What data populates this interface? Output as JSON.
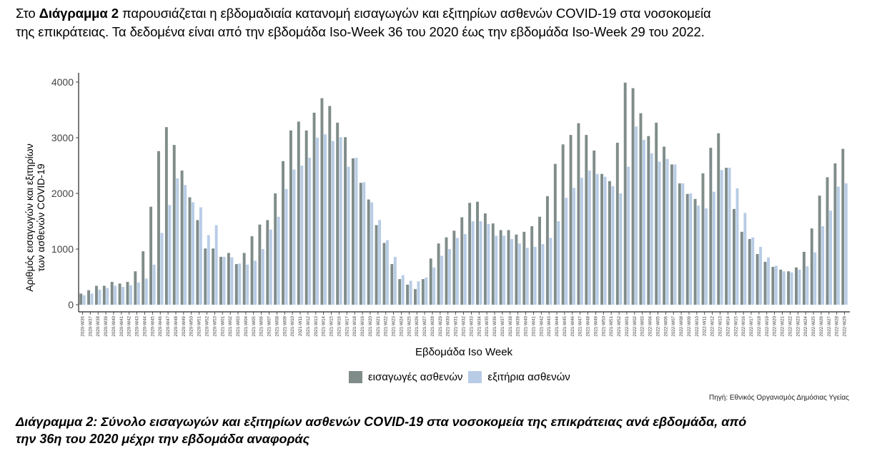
{
  "intro": {
    "prefix": "Στο ",
    "bold": "Διάγραμμα 2",
    "line1_rest": " παρουσιάζεται η εβδομαδιαία κατανομή εισαγωγών και εξιτηρίων ασθενών COVID-19 στα νοσοκομεία",
    "line2": "της επικράτειας.  Τα δεδομένα είναι από την εβδομάδα Iso-Week 36 του 2020 έως την εβδομάδα Iso-Week 29 του 2022."
  },
  "chart_data": {
    "type": "bar",
    "xlabel": "Εβδομάδα Iso Week",
    "ylabel_line1": "Αριθμός εισαγωγών και εξιτηρίων",
    "ylabel_line2": "των ασθενών COVID-19",
    "ylim": [
      0,
      4150
    ],
    "yticks": [
      0,
      1000,
      2000,
      3000,
      4000
    ],
    "grid": false,
    "legend_position": "bottom",
    "categories": [
      "2020-W36",
      "2020-W37",
      "2020-W38",
      "2020-W39",
      "2020-W40",
      "2020-W41",
      "2020-W42",
      "2020-W43",
      "2020-W44",
      "2020-W45",
      "2020-W46",
      "2020-W47",
      "2020-W48",
      "2020-W49",
      "2020-W50",
      "2020-W51",
      "2020-W52",
      "2020-W53",
      "2021-W01",
      "2021-W02",
      "2021-W03",
      "2021-W04",
      "2021-W05",
      "2021-W06",
      "2021-W07",
      "2021-W08",
      "2021-W09",
      "2021-W10",
      "2021-W11",
      "2021-W12",
      "2021-W13",
      "2021-W14",
      "2021-W15",
      "2021-W16",
      "2021-W17",
      "2021-W18",
      "2021-W19",
      "2021-W20",
      "2021-W21",
      "2021-W22",
      "2021-W23",
      "2021-W24",
      "2021-W25",
      "2021-W26",
      "2021-W27",
      "2021-W28",
      "2021-W29",
      "2021-W30",
      "2021-W31",
      "2021-W32",
      "2021-W33",
      "2021-W34",
      "2021-W35",
      "2021-W36",
      "2021-W37",
      "2021-W38",
      "2021-W39",
      "2021-W40",
      "2021-W41",
      "2021-W42",
      "2021-W43",
      "2021-W44",
      "2021-W45",
      "2021-W46",
      "2021-W47",
      "2021-W48",
      "2021-W49",
      "2021-W50",
      "2021-W51",
      "2021-W52",
      "2022-W01",
      "2022-W02",
      "2022-W03",
      "2022-W04",
      "2022-W05",
      "2022-W06",
      "2022-W07",
      "2022-W08",
      "2022-W09",
      "2022-W10",
      "2022-W11",
      "2022-W12",
      "2022-W13",
      "2022-W14",
      "2022-W15",
      "2022-W16",
      "2022-W17",
      "2022-W18",
      "2022-W19",
      "2022-W20",
      "2022-W21",
      "2022-W22",
      "2022-W23",
      "2022-W24",
      "2022-W25",
      "2022-W26",
      "2022-W27",
      "2022-W28",
      "2022-W29"
    ],
    "series": [
      {
        "name": "εισαγωγές ασθενών",
        "color": "#7f8c8a",
        "values": [
          200,
          260,
          340,
          340,
          410,
          380,
          410,
          600,
          960,
          1760,
          2760,
          3190,
          2870,
          2410,
          1930,
          1520,
          1010,
          1010,
          860,
          930,
          730,
          930,
          1230,
          1440,
          1520,
          2000,
          2580,
          3130,
          3290,
          3130,
          3450,
          3710,
          3570,
          3270,
          3010,
          2630,
          2190,
          1890,
          1430,
          1110,
          730,
          460,
          360,
          280,
          460,
          830,
          1100,
          1210,
          1330,
          1570,
          1830,
          1850,
          1640,
          1460,
          1340,
          1340,
          1260,
          1310,
          1410,
          1580,
          1950,
          2530,
          2880,
          3050,
          3260,
          3050,
          2770,
          2350,
          2220,
          2910,
          3990,
          3890,
          3440,
          3030,
          3270,
          2840,
          2520,
          2180,
          1990,
          1900,
          2360,
          2820,
          3080,
          2460,
          1720,
          1310,
          1180,
          910,
          770,
          680,
          630,
          600,
          670,
          950,
          1370,
          1960,
          2290,
          2540,
          2800
        ]
      },
      {
        "name": "εξιτήρια ασθενών",
        "color": "#b8cce6",
        "values": [
          170,
          200,
          270,
          300,
          340,
          320,
          350,
          400,
          470,
          720,
          1290,
          1790,
          2270,
          2150,
          1840,
          1750,
          1250,
          1430,
          860,
          850,
          740,
          720,
          790,
          1000,
          1350,
          1580,
          2080,
          2430,
          2500,
          2640,
          3000,
          3060,
          2940,
          3010,
          2480,
          2640,
          2200,
          1840,
          1520,
          1160,
          860,
          530,
          430,
          420,
          490,
          670,
          880,
          1000,
          1200,
          1270,
          1500,
          1500,
          1450,
          1240,
          1240,
          1180,
          1100,
          1020,
          1040,
          1090,
          1200,
          1500,
          1920,
          2100,
          2280,
          2410,
          2350,
          2300,
          2130,
          2000,
          2480,
          3200,
          2960,
          2720,
          2570,
          2620,
          2520,
          2180,
          2000,
          1780,
          1730,
          2030,
          2420,
          2460,
          2090,
          1650,
          1210,
          1040,
          850,
          700,
          600,
          580,
          630,
          690,
          940,
          1410,
          1690,
          2120,
          2180
        ]
      }
    ]
  },
  "legend": {
    "admissions": "εισαγωγές ασθενών",
    "discharges": "εξιτήρια ασθενών"
  },
  "source": "Πηγή: Εθνικός Οργανισμός Δημόσιας Υγείας",
  "caption": {
    "line1": "Διάγραμμα 2: Σύνολο εισαγωγών και εξιτηρίων ασθενών COVID-19 στα νοσοκομεία της επικράτειας ανά εβδομάδα, από",
    "line2": "την 36η του 2020 μέχρι την εβδομάδα αναφοράς"
  }
}
